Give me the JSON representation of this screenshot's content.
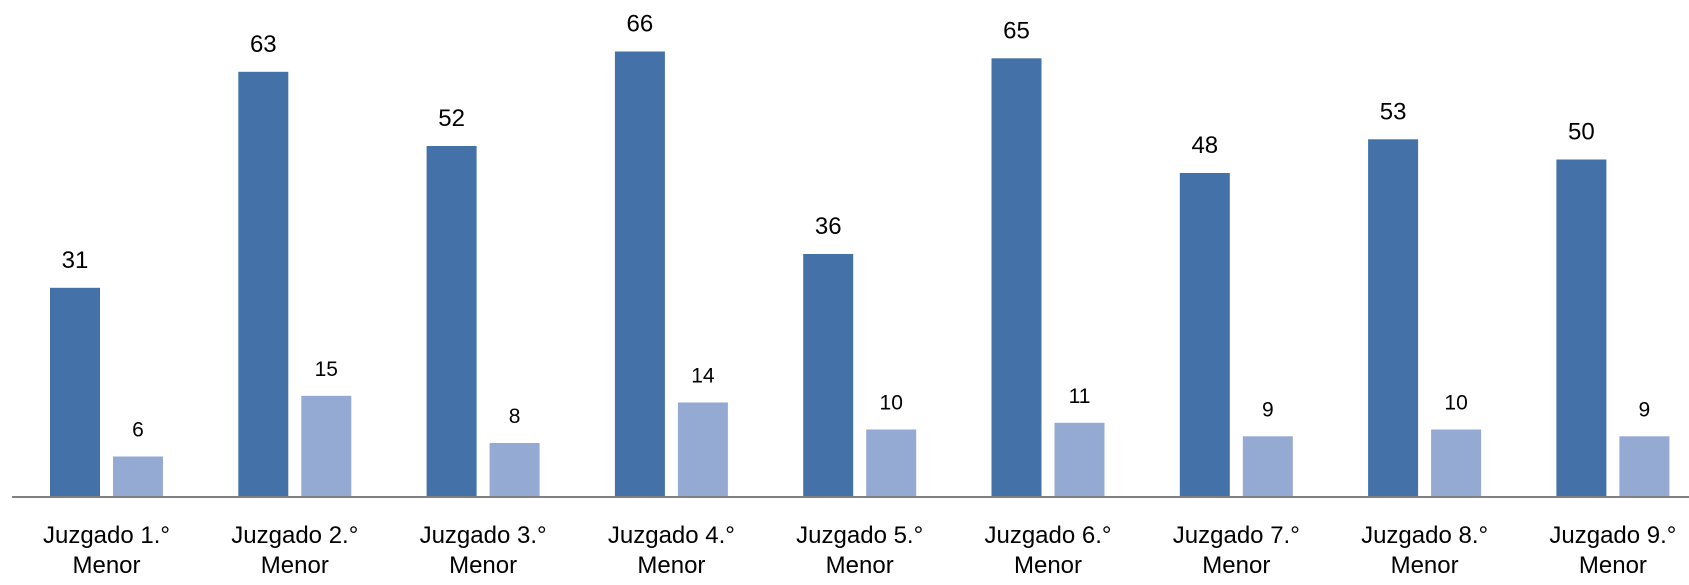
{
  "chart_data": {
    "type": "bar",
    "title": "",
    "xlabel": "",
    "ylabel": "",
    "ylim": [
      0,
      70
    ],
    "grid": false,
    "legend": "none",
    "categories": [
      [
        "Juzgado 1.°",
        "Menor"
      ],
      [
        "Juzgado 2.°",
        "Menor"
      ],
      [
        "Juzgado 3.°",
        "Menor"
      ],
      [
        "Juzgado 4.°",
        "Menor"
      ],
      [
        "Juzgado 5.°",
        "Menor"
      ],
      [
        "Juzgado 6.°",
        "Menor"
      ],
      [
        "Juzgado 7.°",
        "Menor"
      ],
      [
        "Juzgado 8.°",
        "Menor"
      ],
      [
        "Juzgado 9.°",
        "Menor"
      ]
    ],
    "series": [
      {
        "values": [
          31,
          63,
          52,
          66,
          36,
          65,
          48,
          53,
          50
        ],
        "color": "#4472A8"
      },
      {
        "values": [
          6,
          15,
          8,
          14,
          10,
          11,
          9,
          10,
          9
        ],
        "color": "#95AAD2"
      }
    ],
    "axis_color": "#808080"
  }
}
